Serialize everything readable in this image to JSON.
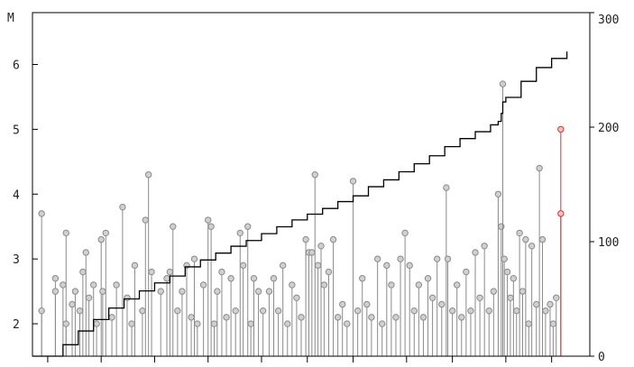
{
  "chart_data": {
    "type": "scatter",
    "title": "",
    "xlabel": "",
    "ylabel_left": "M",
    "ylabel_right": "",
    "left_axis": {
      "ylim": [
        1.5,
        6.8
      ],
      "ticks": [
        "2",
        "3",
        "4",
        "5",
        "6"
      ]
    },
    "right_axis": {
      "ylim": [
        0,
        300
      ],
      "ticks": [
        "0",
        "100",
        "200",
        "300"
      ]
    },
    "x_range": [
      0,
      365
    ],
    "x_ticks": [
      10,
      45,
      80,
      115,
      150,
      180,
      210,
      245,
      275,
      310,
      340
    ],
    "grid": false,
    "colors": {
      "stem": "#8a8a8a",
      "marker_fill": "#d0d0d0",
      "highlight": "#e03030",
      "cumulative_line": "#000000"
    },
    "series": [
      {
        "role": "magnitude_stems",
        "axis": "left",
        "points": [
          {
            "x": 6,
            "y": 3.7
          },
          {
            "x": 6,
            "y": 2.2
          },
          {
            "x": 15,
            "y": 2.7
          },
          {
            "x": 15,
            "y": 2.5
          },
          {
            "x": 20,
            "y": 2.6
          },
          {
            "x": 22,
            "y": 3.4
          },
          {
            "x": 22,
            "y": 2.0
          },
          {
            "x": 26,
            "y": 2.3
          },
          {
            "x": 28,
            "y": 2.5
          },
          {
            "x": 31,
            "y": 2.2
          },
          {
            "x": 33,
            "y": 2.8
          },
          {
            "x": 35,
            "y": 3.1
          },
          {
            "x": 37,
            "y": 2.4
          },
          {
            "x": 40,
            "y": 2.6
          },
          {
            "x": 42,
            "y": 2.0
          },
          {
            "x": 45,
            "y": 3.3
          },
          {
            "x": 46,
            "y": 2.5
          },
          {
            "x": 48,
            "y": 3.4
          },
          {
            "x": 52,
            "y": 2.1
          },
          {
            "x": 55,
            "y": 2.6
          },
          {
            "x": 59,
            "y": 3.8
          },
          {
            "x": 62,
            "y": 2.4
          },
          {
            "x": 65,
            "y": 2.0
          },
          {
            "x": 67,
            "y": 2.9
          },
          {
            "x": 72,
            "y": 2.2
          },
          {
            "x": 74,
            "y": 3.6
          },
          {
            "x": 76,
            "y": 4.3
          },
          {
            "x": 78,
            "y": 2.8
          },
          {
            "x": 84,
            "y": 2.5
          },
          {
            "x": 88,
            "y": 2.7
          },
          {
            "x": 90,
            "y": 2.8
          },
          {
            "x": 92,
            "y": 3.5
          },
          {
            "x": 95,
            "y": 2.2
          },
          {
            "x": 98,
            "y": 2.5
          },
          {
            "x": 101,
            "y": 2.9
          },
          {
            "x": 104,
            "y": 2.1
          },
          {
            "x": 106,
            "y": 3.0
          },
          {
            "x": 108,
            "y": 2.0
          },
          {
            "x": 112,
            "y": 2.6
          },
          {
            "x": 115,
            "y": 3.6
          },
          {
            "x": 117,
            "y": 3.5
          },
          {
            "x": 119,
            "y": 2.0
          },
          {
            "x": 121,
            "y": 2.5
          },
          {
            "x": 124,
            "y": 2.8
          },
          {
            "x": 127,
            "y": 2.1
          },
          {
            "x": 130,
            "y": 2.7
          },
          {
            "x": 133,
            "y": 2.2
          },
          {
            "x": 136,
            "y": 3.4
          },
          {
            "x": 138,
            "y": 2.9
          },
          {
            "x": 141,
            "y": 3.5
          },
          {
            "x": 143,
            "y": 2.0
          },
          {
            "x": 145,
            "y": 2.7
          },
          {
            "x": 148,
            "y": 2.5
          },
          {
            "x": 151,
            "y": 2.2
          },
          {
            "x": 155,
            "y": 2.5
          },
          {
            "x": 158,
            "y": 2.7
          },
          {
            "x": 161,
            "y": 2.2
          },
          {
            "x": 164,
            "y": 2.9
          },
          {
            "x": 167,
            "y": 2.0
          },
          {
            "x": 170,
            "y": 2.6
          },
          {
            "x": 173,
            "y": 2.4
          },
          {
            "x": 176,
            "y": 2.1
          },
          {
            "x": 179,
            "y": 3.3
          },
          {
            "x": 181,
            "y": 3.1
          },
          {
            "x": 183,
            "y": 3.1
          },
          {
            "x": 185,
            "y": 4.3
          },
          {
            "x": 187,
            "y": 2.9
          },
          {
            "x": 189,
            "y": 3.2
          },
          {
            "x": 191,
            "y": 2.6
          },
          {
            "x": 194,
            "y": 2.8
          },
          {
            "x": 197,
            "y": 3.3
          },
          {
            "x": 200,
            "y": 2.1
          },
          {
            "x": 203,
            "y": 2.3
          },
          {
            "x": 206,
            "y": 2.0
          },
          {
            "x": 210,
            "y": 4.2
          },
          {
            "x": 213,
            "y": 2.2
          },
          {
            "x": 216,
            "y": 2.7
          },
          {
            "x": 219,
            "y": 2.3
          },
          {
            "x": 222,
            "y": 2.1
          },
          {
            "x": 226,
            "y": 3.0
          },
          {
            "x": 229,
            "y": 2.0
          },
          {
            "x": 232,
            "y": 2.9
          },
          {
            "x": 235,
            "y": 2.6
          },
          {
            "x": 238,
            "y": 2.1
          },
          {
            "x": 241,
            "y": 3.0
          },
          {
            "x": 244,
            "y": 3.4
          },
          {
            "x": 247,
            "y": 2.9
          },
          {
            "x": 250,
            "y": 2.2
          },
          {
            "x": 253,
            "y": 2.6
          },
          {
            "x": 256,
            "y": 2.1
          },
          {
            "x": 259,
            "y": 2.7
          },
          {
            "x": 262,
            "y": 2.4
          },
          {
            "x": 265,
            "y": 3.0
          },
          {
            "x": 268,
            "y": 2.3
          },
          {
            "x": 271,
            "y": 4.1
          },
          {
            "x": 272,
            "y": 3.0
          },
          {
            "x": 275,
            "y": 2.2
          },
          {
            "x": 278,
            "y": 2.6
          },
          {
            "x": 281,
            "y": 2.1
          },
          {
            "x": 284,
            "y": 2.8
          },
          {
            "x": 287,
            "y": 2.2
          },
          {
            "x": 290,
            "y": 3.1
          },
          {
            "x": 293,
            "y": 2.4
          },
          {
            "x": 296,
            "y": 3.2
          },
          {
            "x": 299,
            "y": 2.2
          },
          {
            "x": 302,
            "y": 2.5
          },
          {
            "x": 305,
            "y": 4.0
          },
          {
            "x": 307,
            "y": 3.5
          },
          {
            "x": 308,
            "y": 5.7
          },
          {
            "x": 309,
            "y": 3.0
          },
          {
            "x": 311,
            "y": 2.8
          },
          {
            "x": 313,
            "y": 2.4
          },
          {
            "x": 315,
            "y": 2.7
          },
          {
            "x": 317,
            "y": 2.2
          },
          {
            "x": 319,
            "y": 3.4
          },
          {
            "x": 321,
            "y": 2.5
          },
          {
            "x": 323,
            "y": 3.3
          },
          {
            "x": 325,
            "y": 2.0
          },
          {
            "x": 327,
            "y": 3.2
          },
          {
            "x": 330,
            "y": 2.3
          },
          {
            "x": 332,
            "y": 4.4
          },
          {
            "x": 334,
            "y": 3.3
          },
          {
            "x": 336,
            "y": 2.2
          },
          {
            "x": 339,
            "y": 2.3
          },
          {
            "x": 341,
            "y": 2.0
          },
          {
            "x": 343,
            "y": 2.4
          }
        ]
      },
      {
        "role": "highlighted_event",
        "axis": "left",
        "points": [
          {
            "x": 346,
            "y": 5.0
          },
          {
            "x": 346,
            "y": 3.7
          }
        ]
      },
      {
        "role": "cumulative_count",
        "axis": "right",
        "x": [
          0,
          10,
          20,
          30,
          40,
          50,
          60,
          70,
          80,
          90,
          100,
          110,
          120,
          130,
          140,
          150,
          160,
          170,
          180,
          190,
          200,
          210,
          220,
          230,
          240,
          250,
          260,
          270,
          280,
          290,
          300,
          305,
          307,
          308,
          310,
          320,
          330,
          340,
          350
        ],
        "y": [
          0,
          0,
          10,
          22,
          32,
          42,
          50,
          57,
          64,
          70,
          78,
          84,
          90,
          96,
          101,
          107,
          113,
          119,
          124,
          129,
          135,
          140,
          148,
          154,
          161,
          168,
          175,
          183,
          190,
          196,
          202,
          205,
          212,
          222,
          226,
          240,
          252,
          260,
          266
        ]
      }
    ]
  }
}
